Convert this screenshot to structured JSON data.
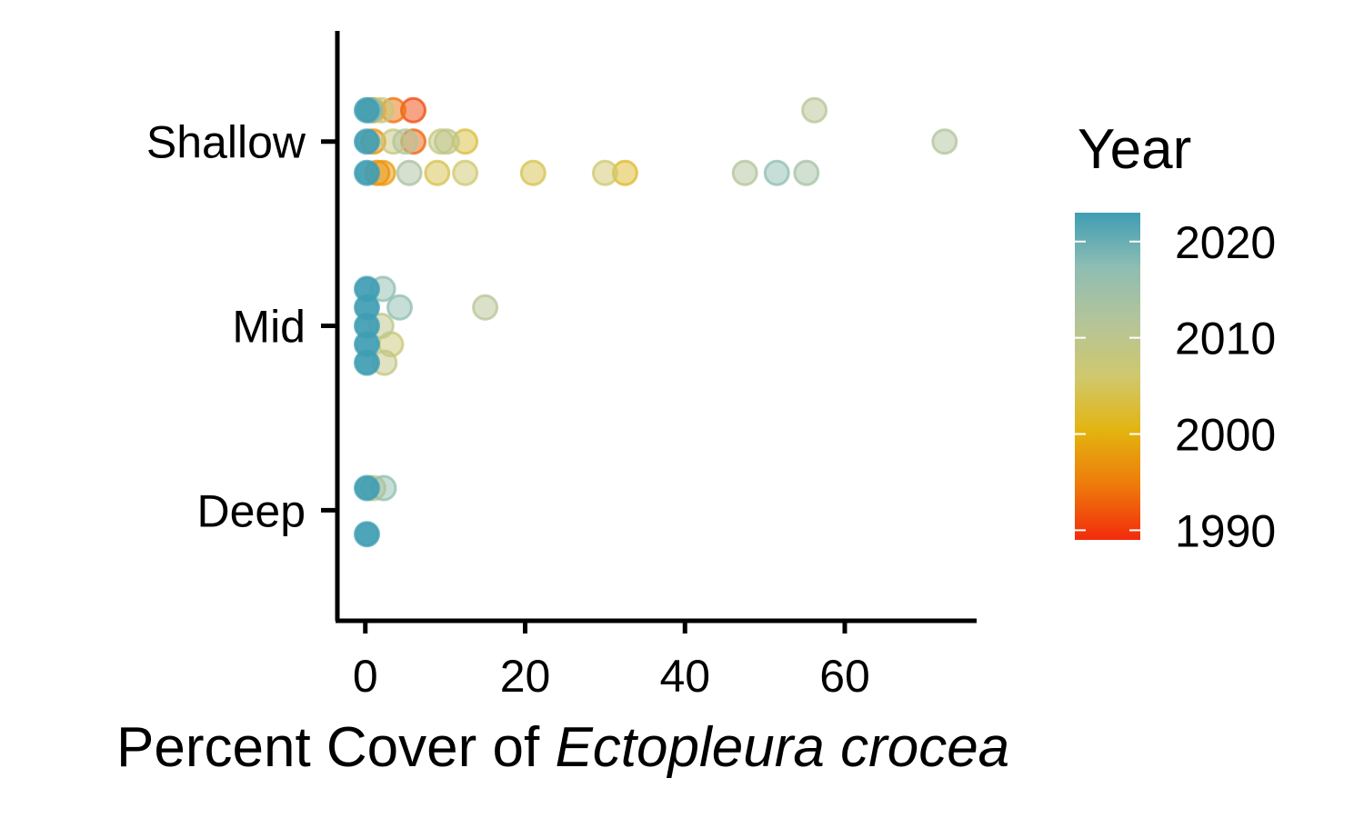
{
  "chart_data": {
    "type": "scatter",
    "x_axis": {
      "title_prefix": "Percent Cover of ",
      "title_italic": "Ectopleura crocea",
      "ticks": [
        0,
        20,
        40,
        60
      ],
      "tick_labels": [
        "0",
        "20",
        "40",
        "60"
      ],
      "range": [
        -3.5,
        76.5
      ]
    },
    "y_axis": {
      "categories": [
        "Shallow",
        "Mid",
        "Deep"
      ]
    },
    "legend": {
      "title": "Year",
      "position": "right",
      "type": "colorbar",
      "range": [
        1989,
        2023
      ],
      "ticks": [
        2020,
        2010,
        2000,
        1990
      ],
      "tick_labels": [
        "2020",
        "2010",
        "2000",
        "1990"
      ],
      "colors": [
        "#f22b0c",
        "#ee7a0b",
        "#e3b40f",
        "#cfc86e",
        "#b4c499",
        "#8ebdb3",
        "#3f9db3"
      ]
    },
    "grid": false,
    "points": [
      {
        "depth": "Shallow",
        "x": 0.2,
        "jitter": 0.17,
        "year": 2023
      },
      {
        "depth": "Shallow",
        "x": 0.6,
        "jitter": 0.17,
        "year": 2018
      },
      {
        "depth": "Shallow",
        "x": 1.0,
        "jitter": 0.17,
        "year": 1998
      },
      {
        "depth": "Shallow",
        "x": 2.0,
        "jitter": 0.17,
        "year": 2008
      },
      {
        "depth": "Shallow",
        "x": 3.5,
        "jitter": 0.17,
        "year": 1994
      },
      {
        "depth": "Shallow",
        "x": 6.0,
        "jitter": 0.17,
        "year": 1991
      },
      {
        "depth": "Shallow",
        "x": 56.2,
        "jitter": 0.17,
        "year": 2011
      },
      {
        "depth": "Shallow",
        "x": 0.2,
        "jitter": 0.0,
        "year": 2023
      },
      {
        "depth": "Shallow",
        "x": 1.0,
        "jitter": 0.0,
        "year": 1997
      },
      {
        "depth": "Shallow",
        "x": 3.5,
        "jitter": 0.0,
        "year": 2008
      },
      {
        "depth": "Shallow",
        "x": 5.0,
        "jitter": 0.0,
        "year": 2012
      },
      {
        "depth": "Shallow",
        "x": 6.0,
        "jitter": 0.0,
        "year": 1993
      },
      {
        "depth": "Shallow",
        "x": 9.5,
        "jitter": 0.0,
        "year": 2008
      },
      {
        "depth": "Shallow",
        "x": 10.2,
        "jitter": 0.0,
        "year": 2010
      },
      {
        "depth": "Shallow",
        "x": 12.5,
        "jitter": 0.0,
        "year": 2003
      },
      {
        "depth": "Shallow",
        "x": 72.5,
        "jitter": 0.0,
        "year": 2012
      },
      {
        "depth": "Shallow",
        "x": 0.2,
        "jitter": -0.17,
        "year": 2023
      },
      {
        "depth": "Shallow",
        "x": 1.5,
        "jitter": -0.17,
        "year": 1996
      },
      {
        "depth": "Shallow",
        "x": 2.2,
        "jitter": -0.17,
        "year": 1998
      },
      {
        "depth": "Shallow",
        "x": 5.5,
        "jitter": -0.17,
        "year": 2013
      },
      {
        "depth": "Shallow",
        "x": 9.0,
        "jitter": -0.17,
        "year": 2004
      },
      {
        "depth": "Shallow",
        "x": 12.5,
        "jitter": -0.17,
        "year": 2006
      },
      {
        "depth": "Shallow",
        "x": 21.0,
        "jitter": -0.17,
        "year": 2004
      },
      {
        "depth": "Shallow",
        "x": 30.0,
        "jitter": -0.17,
        "year": 2006
      },
      {
        "depth": "Shallow",
        "x": 32.5,
        "jitter": -0.17,
        "year": 2002
      },
      {
        "depth": "Shallow",
        "x": 47.5,
        "jitter": -0.17,
        "year": 2012
      },
      {
        "depth": "Shallow",
        "x": 51.5,
        "jitter": -0.17,
        "year": 2017
      },
      {
        "depth": "Shallow",
        "x": 55.2,
        "jitter": -0.17,
        "year": 2014
      },
      {
        "depth": "Mid",
        "x": 0.2,
        "jitter": 0.2,
        "year": 2023
      },
      {
        "depth": "Mid",
        "x": 2.2,
        "jitter": 0.2,
        "year": 2017
      },
      {
        "depth": "Mid",
        "x": 0.2,
        "jitter": 0.1,
        "year": 2023
      },
      {
        "depth": "Mid",
        "x": 4.3,
        "jitter": 0.1,
        "year": 2017
      },
      {
        "depth": "Mid",
        "x": 15.0,
        "jitter": 0.1,
        "year": 2011
      },
      {
        "depth": "Mid",
        "x": 0.2,
        "jitter": 0.0,
        "year": 2023
      },
      {
        "depth": "Mid",
        "x": 2.0,
        "jitter": 0.0,
        "year": 2010
      },
      {
        "depth": "Mid",
        "x": 0.2,
        "jitter": -0.1,
        "year": 2023
      },
      {
        "depth": "Mid",
        "x": 3.2,
        "jitter": -0.1,
        "year": 2007
      },
      {
        "depth": "Mid",
        "x": 0.2,
        "jitter": -0.2,
        "year": 2023
      },
      {
        "depth": "Mid",
        "x": 2.4,
        "jitter": -0.2,
        "year": 2009
      },
      {
        "depth": "Deep",
        "x": 0.2,
        "jitter": 0.12,
        "year": 2023
      },
      {
        "depth": "Deep",
        "x": 1.0,
        "jitter": 0.12,
        "year": 2008
      },
      {
        "depth": "Deep",
        "x": 2.3,
        "jitter": 0.12,
        "year": 2017
      },
      {
        "depth": "Deep",
        "x": 0.2,
        "jitter": -0.13,
        "year": 2023
      }
    ]
  }
}
